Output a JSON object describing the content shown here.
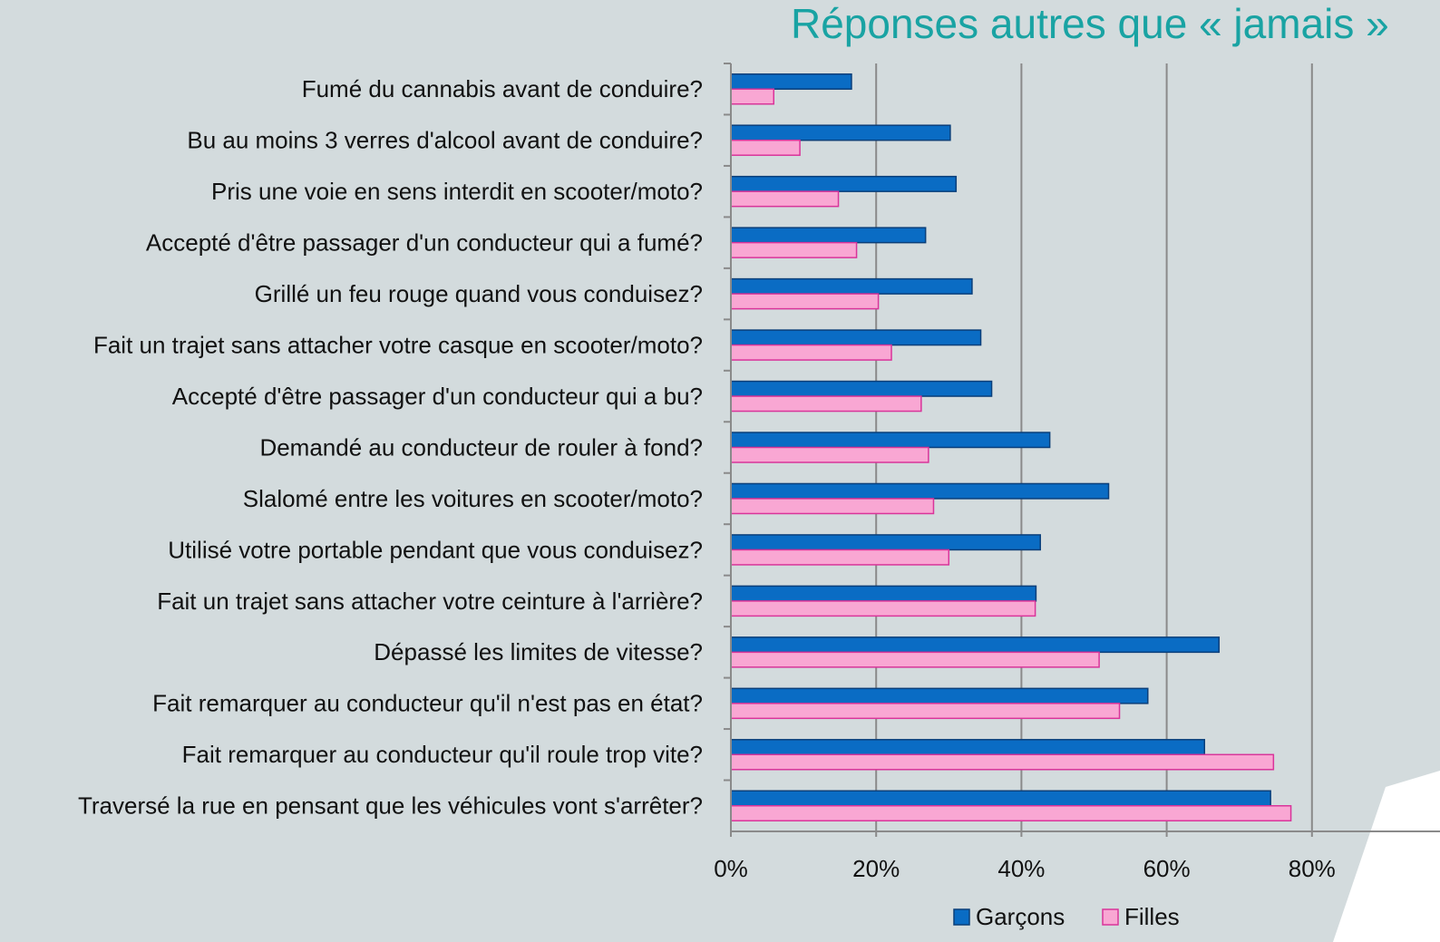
{
  "chart_data": {
    "type": "bar",
    "title": "Réponses autres que « jamais  »",
    "categories": [
      "Fumé du cannabis avant de conduire?",
      "Bu au moins 3 verres d'alcool avant de conduire?",
      "Pris une voie en sens interdit en scooter/moto?",
      "Accepté d'être passager d'un conducteur qui a fumé?",
      "Grillé un feu rouge quand vous conduisez?",
      "Fait un trajet sans attacher votre casque en scooter/moto?",
      "Accepté d'être passager d'un conducteur qui a bu?",
      "Demandé au conducteur de rouler à fond?",
      "Slalomé entre les voitures en scooter/moto?",
      "Utilisé votre portable pendant que vous conduisez?",
      "Fait un trajet sans attacher votre ceinture à l'arrière?",
      "Dépassé les limites de vitesse?",
      "Fait remarquer au conducteur qu'il n'est pas en état?",
      "Fait remarquer au conducteur qu'il roule trop vite?",
      "Traversé la rue en pensant que les véhicules vont s'arrêter?"
    ],
    "series": [
      {
        "name": "Garçons",
        "color": "#0a6cc4",
        "values": [
          16.6,
          30.2,
          31.0,
          26.8,
          33.2,
          34.4,
          35.9,
          43.9,
          52.0,
          42.6,
          42.0,
          67.2,
          57.4,
          65.2,
          74.3
        ]
      },
      {
        "name": "Filles",
        "color": "#f9a7d3",
        "values": [
          5.9,
          9.5,
          14.8,
          17.3,
          20.3,
          22.1,
          26.2,
          27.2,
          27.9,
          30.0,
          41.9,
          50.7,
          53.5,
          74.7,
          77.1
        ]
      }
    ],
    "xlim": [
      0,
      100
    ],
    "xticks": [
      {
        "value": 0,
        "label": "0%"
      },
      {
        "value": 20,
        "label": "20%"
      },
      {
        "value": 40,
        "label": "40%"
      },
      {
        "value": 60,
        "label": "60%"
      },
      {
        "value": 80,
        "label": "80%"
      }
    ],
    "grid": true,
    "legend": "bottom"
  }
}
